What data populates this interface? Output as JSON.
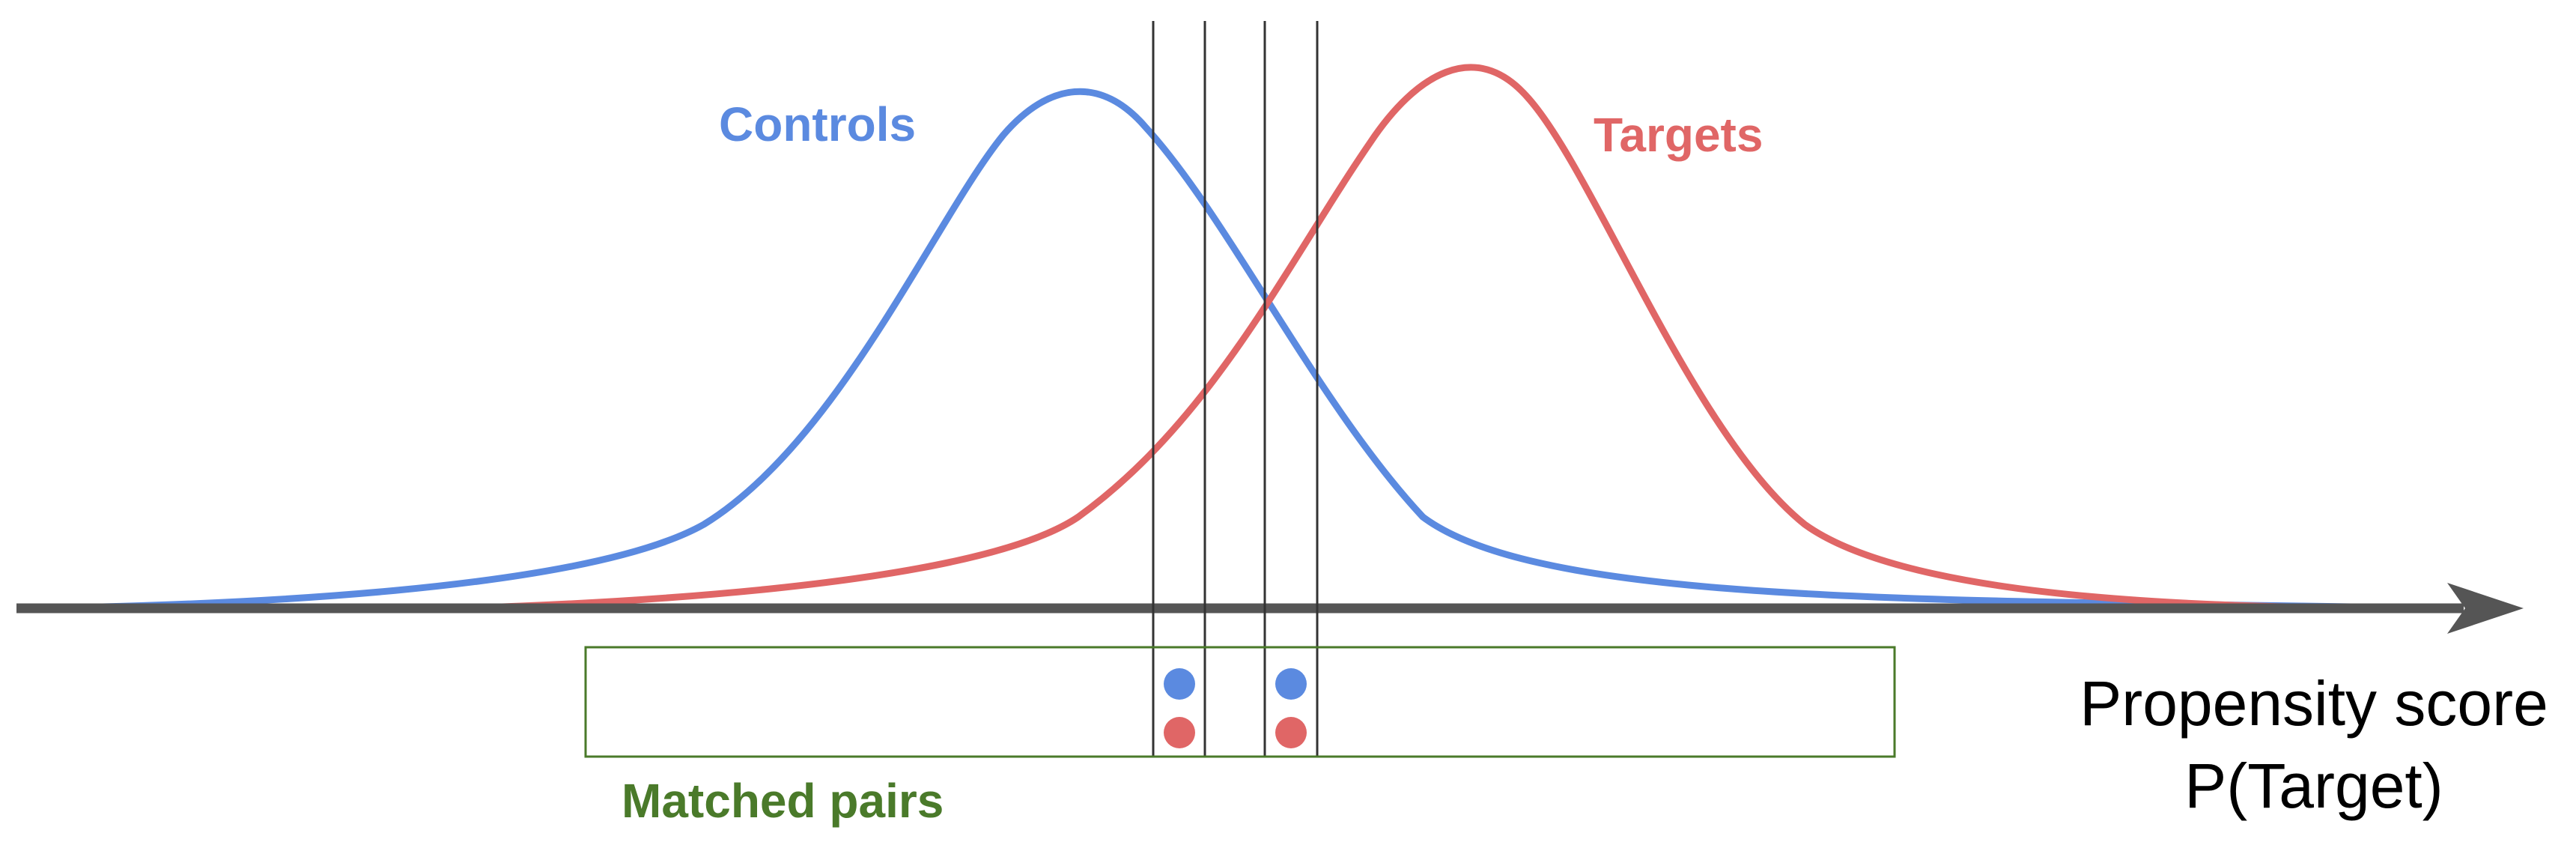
{
  "colors": {
    "controls": "#5b8ae0",
    "targets": "#e06666",
    "axis": "#555555",
    "matched_box": "#4a7a2a",
    "matched_label": "#4a7a2a",
    "guide_lines": "#333333",
    "axis_label": "#000000"
  },
  "labels": {
    "controls": "Controls",
    "targets": "Targets",
    "matched_pairs": "Matched pairs",
    "axis_line1": "Propensity score",
    "axis_line2": "P(Target)"
  },
  "matched_pairs": [
    {
      "control": "control-point",
      "target": "target-point"
    },
    {
      "control": "control-point",
      "target": "target-point"
    }
  ],
  "icons": {
    "axis_arrow": "arrow-right-icon"
  }
}
